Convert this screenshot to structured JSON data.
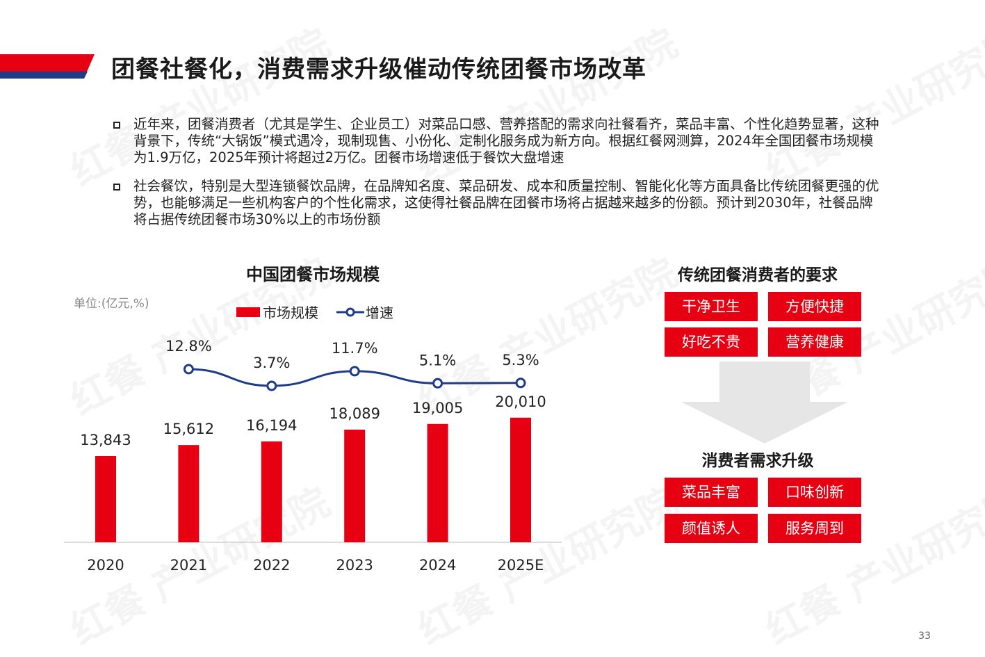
{
  "header": {
    "title": "团餐社餐化，消费需求升级催动传统团餐市场改革"
  },
  "bullets": [
    "近年来，团餐消费者（尤其是学生、企业员工）对菜品口感、营养搭配的需求向社餐看齐，菜品丰富、个性化趋势显著，这种背景下，传统“大锅饭”模式遇冷，现制现售、小份化、定制化服务成为新方向。根据红餐网测算，2024年全国团餐市场规模为1.9万亿，2025年预计将超过2万亿。团餐市场增速低于餐饮大盘增速",
    "社会餐饮，特别是大型连锁餐饮品牌，在品牌知名度、菜品研发、成本和质量控制、智能化化等方面具备比传统团餐更强的优势，也能够满足一些机构客户的个性化需求，这使得社餐品牌在团餐市场将占据越来越多的份额。预计到2030年，社餐品牌将占据传统团餐市场30%以上的市场份额"
  ],
  "chart_data": {
    "type": "bar",
    "title": "中国团餐市场规模",
    "unit_label": "单位:(亿元,%)",
    "categories": [
      "2020",
      "2021",
      "2022",
      "2023",
      "2024",
      "2025E"
    ],
    "series": [
      {
        "name": "市场规模",
        "type": "bar",
        "color": "#e60012",
        "values": [
          13843,
          15612,
          16194,
          18089,
          19005,
          20010
        ],
        "labels": [
          "13,843",
          "15,612",
          "16,194",
          "18,089",
          "19,005",
          "20,010"
        ]
      },
      {
        "name": "增速",
        "type": "line",
        "color": "#1f3c88",
        "values": [
          null,
          12.8,
          3.7,
          11.7,
          5.1,
          5.3
        ],
        "labels": [
          "",
          "12.8%",
          "3.7%",
          "11.7%",
          "5.1%",
          "5.3%"
        ]
      }
    ],
    "legend_position": "top",
    "grid": false
  },
  "requirements": {
    "title": "传统团餐消费者的要求",
    "tags": [
      "干净卫生",
      "方便快捷",
      "好吃不贵",
      "营养健康"
    ]
  },
  "upgrade": {
    "title": "消费者需求升级",
    "tags": [
      "菜品丰富",
      "口味创新",
      "颜值诱人",
      "服务周到"
    ]
  },
  "watermark": "红餐 产业研究院",
  "page_number": "33",
  "colors": {
    "accent_red": "#e60012",
    "accent_blue": "#1f3c88",
    "arrow_gray": "#e6e6e6"
  }
}
